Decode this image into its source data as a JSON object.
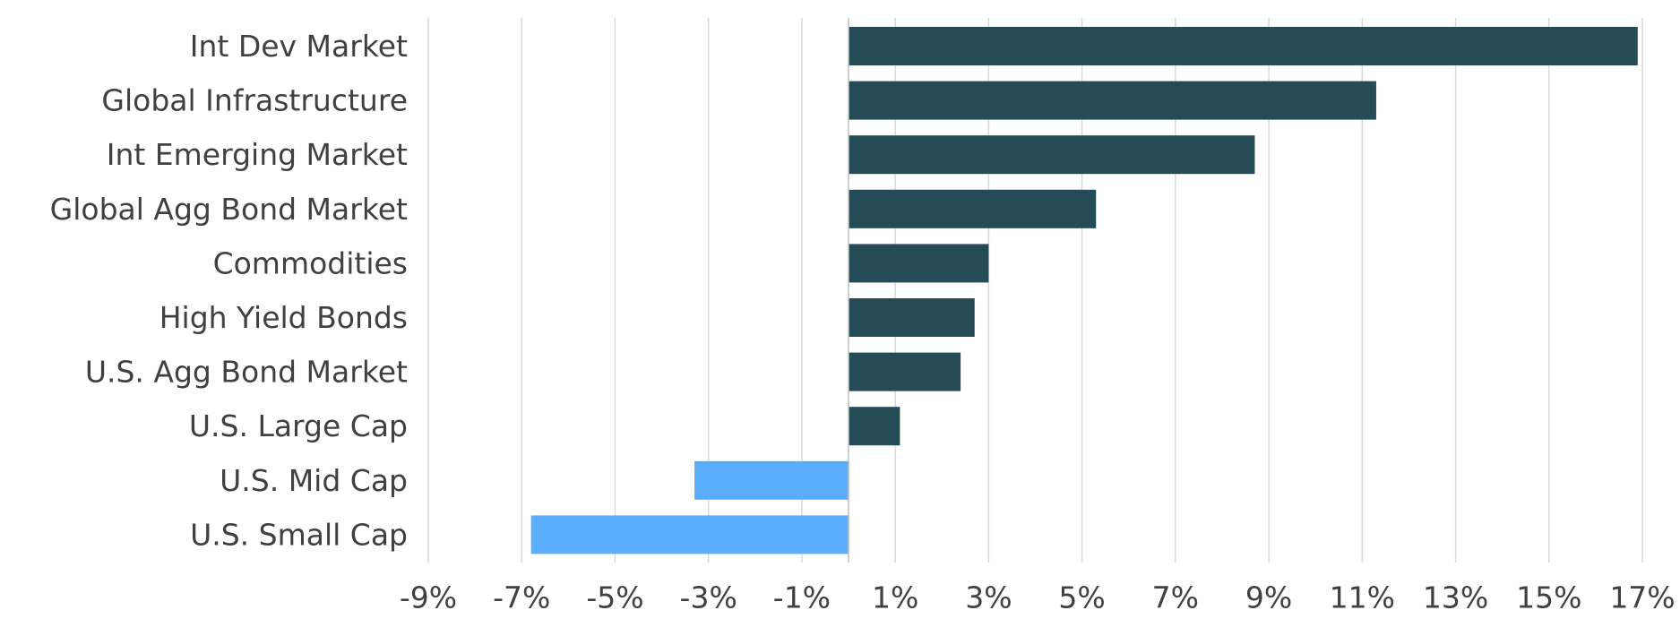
{
  "chart_data": {
    "type": "bar",
    "orientation": "horizontal",
    "title": "",
    "xlabel": "",
    "ylabel": "",
    "categories": [
      "Int Dev Market",
      "Global Infrastructure",
      "Int Emerging Market",
      "Global Agg Bond Market",
      "Commodities",
      "High Yield Bonds",
      "U.S. Agg Bond Market",
      "U.S. Large Cap",
      "U.S. Mid Cap",
      "U.S. Small Cap"
    ],
    "values": [
      16.9,
      11.3,
      8.7,
      5.3,
      3.0,
      2.7,
      2.4,
      1.1,
      -3.3,
      -6.8
    ],
    "xlim": [
      -9,
      17
    ],
    "x_ticks": [
      -9,
      -7,
      -5,
      -3,
      -1,
      1,
      3,
      5,
      7,
      9,
      11,
      13,
      15,
      17
    ],
    "x_tick_labels": [
      "-9%",
      "-7%",
      "-5%",
      "-3%",
      "-1%",
      "1%",
      "3%",
      "5%",
      "7%",
      "9%",
      "11%",
      "13%",
      "15%",
      "17%"
    ],
    "grid": "vertical",
    "legend": "none",
    "colors": {
      "positive": "#254b56",
      "negative": "#5aadfb",
      "grid": "#d9d9d9",
      "text": "#404040"
    }
  }
}
